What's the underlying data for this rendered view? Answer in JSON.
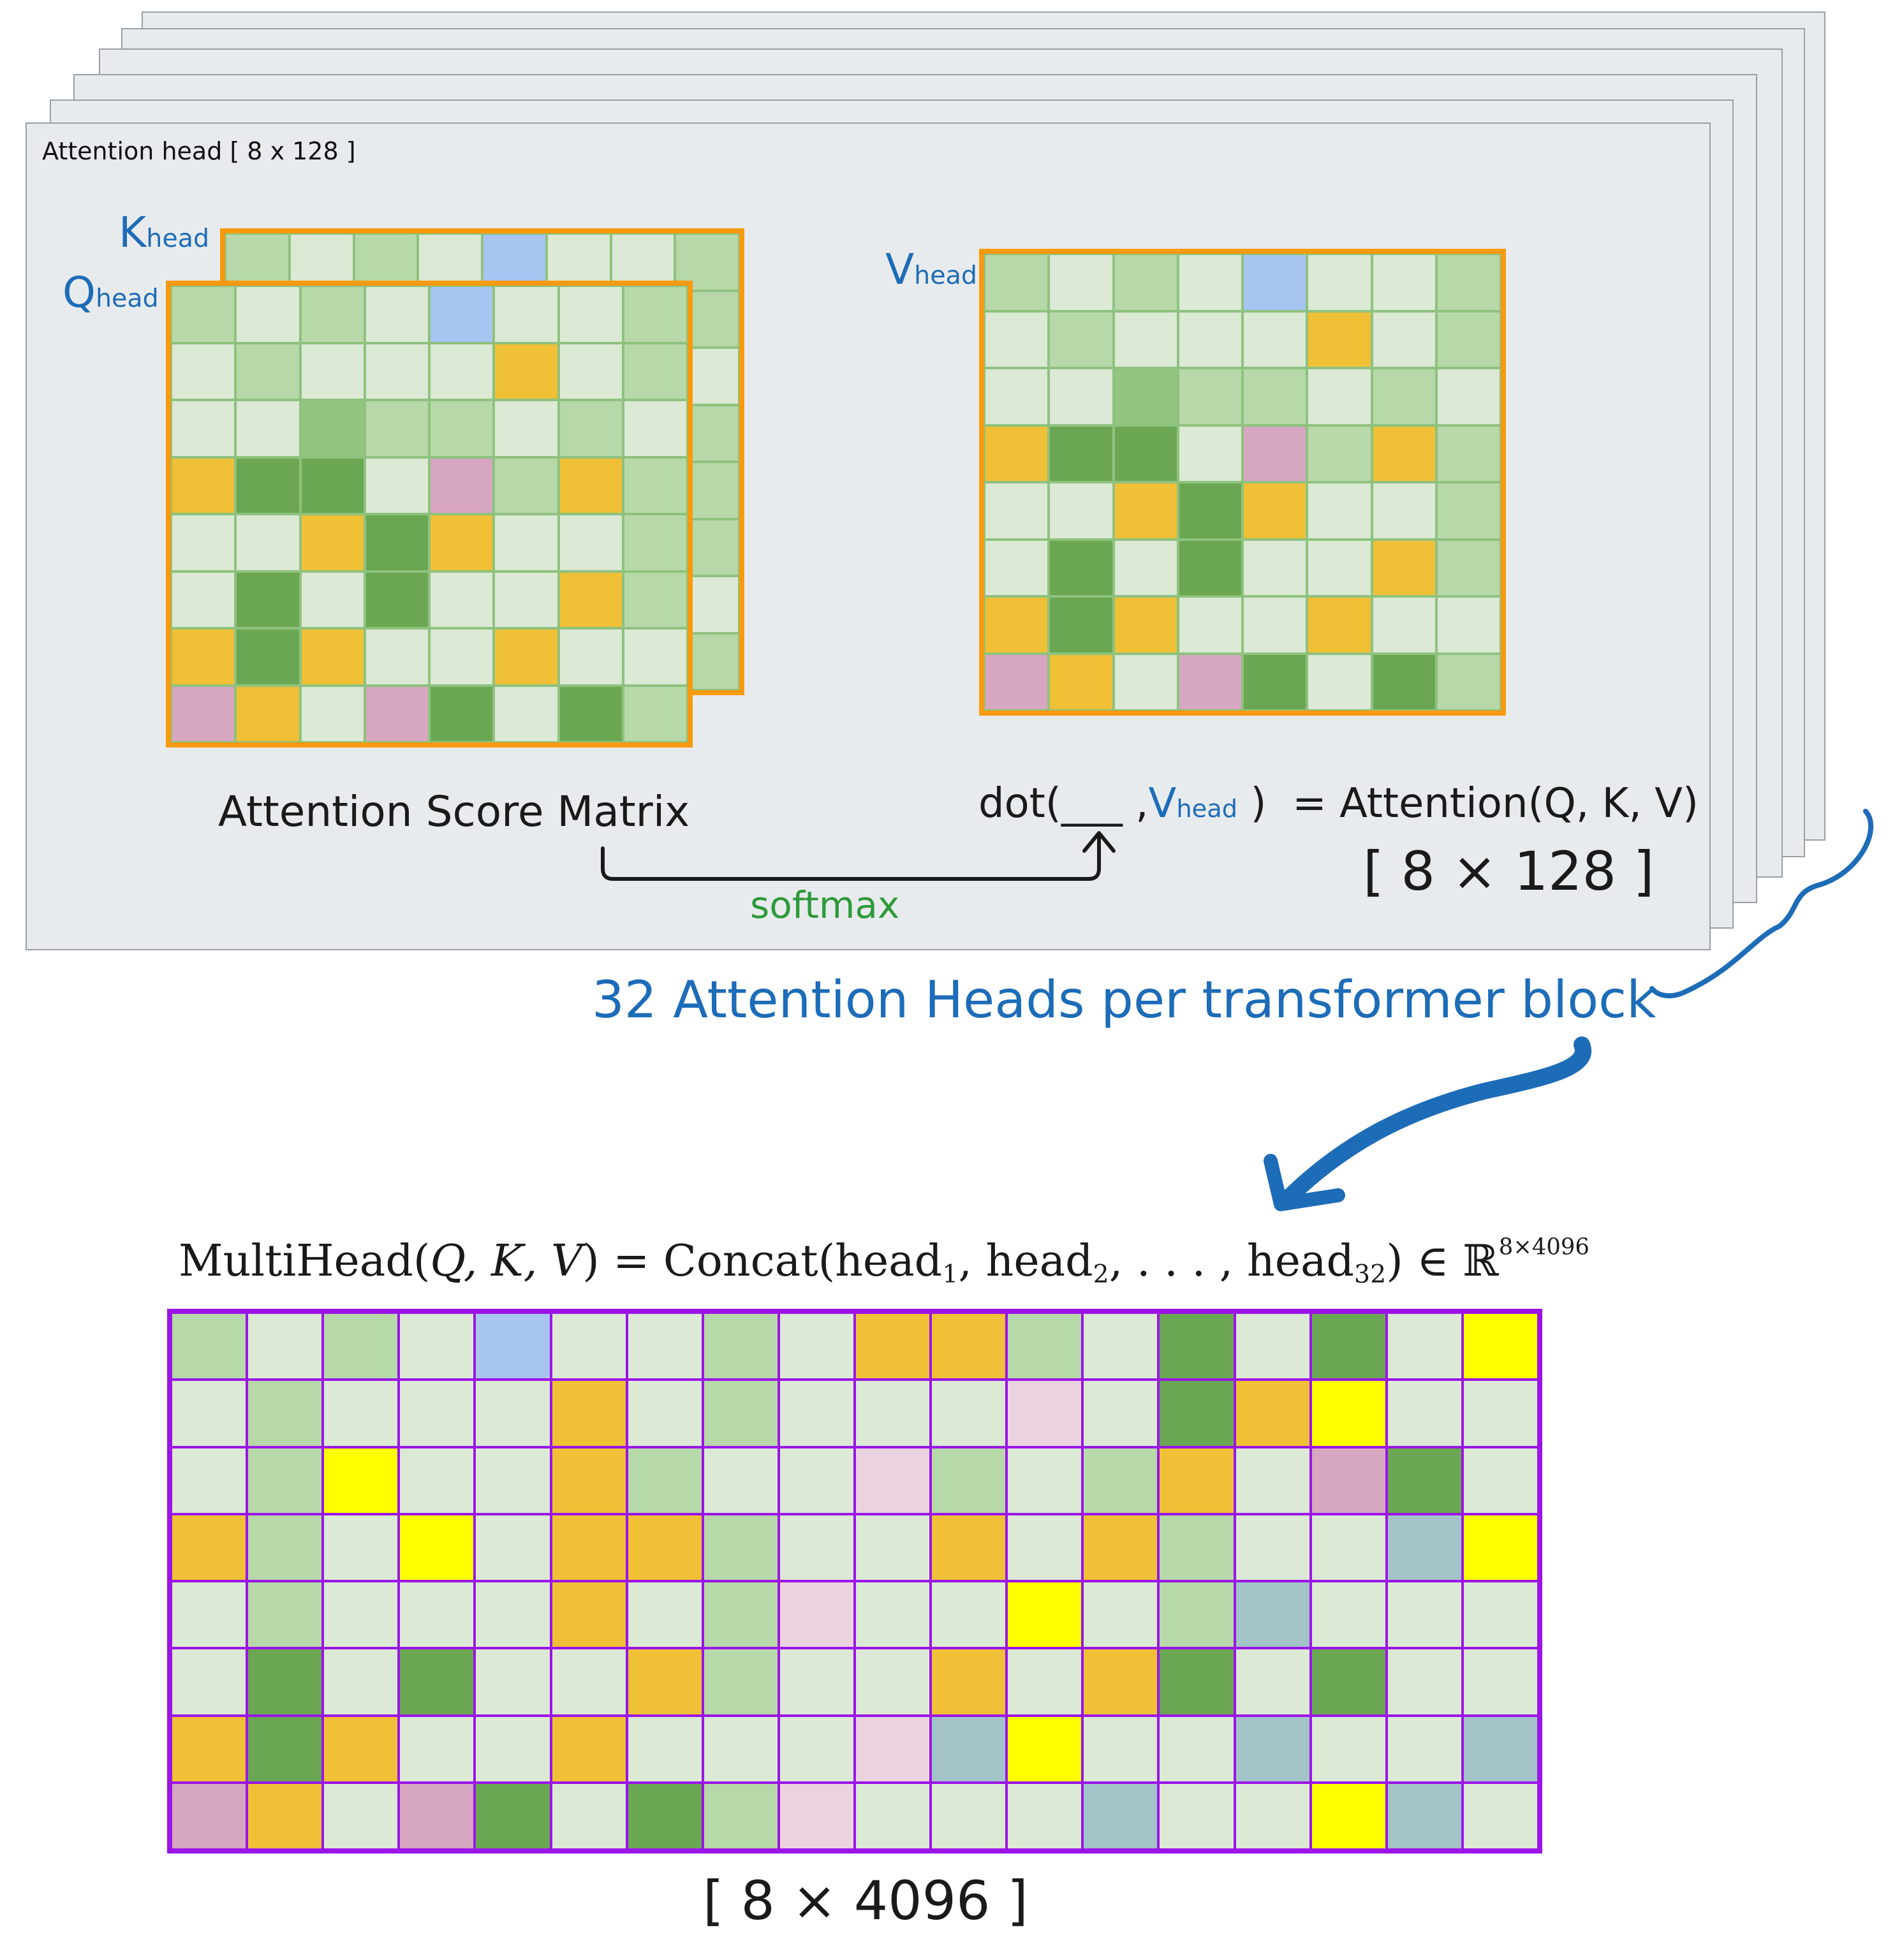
{
  "head_label": "Attention head [ 8 x 128 ]",
  "k_label": {
    "main": "K",
    "sub": "head"
  },
  "q_label": {
    "main": "Q",
    "sub": "head"
  },
  "v_label": {
    "main": "V",
    "sub": "head"
  },
  "score_label": "Attention Score Matrix",
  "dot_expr": {
    "prefix": "dot(___ ,",
    "v_main": "V",
    "v_sub": "head",
    "suffix": ")",
    "result": "= Attention(Q, K, V)"
  },
  "head_dim_label": "[ 8 × 128 ]",
  "softmax_label": "softmax",
  "heads_label": "32 Attention Heads per transformer block",
  "formula": {
    "lhs": "MultiHead(",
    "args": "Q, K, V",
    "eq": ") = Concat(head",
    "s1": "1",
    "c1": ", head",
    "s2": "2",
    "c2": ", . . . , head",
    "s32": "32",
    "close": ") ∈ ℝ",
    "sup": "8×4096"
  },
  "output_dim_label": "[ 8 × 4096 ]",
  "colors": {
    "card_bg": "#e8ebee",
    "matrix_border": "#f79a0f",
    "multihead_border": "#9b14e8",
    "palette": {
      "L": "#dbe9d5",
      "M": "#b7d8a9",
      "D": "#6ba753",
      "G": "#94c57f",
      "Y": "#f0c036",
      "B": "#a8c5f2",
      "P": "#d7a7c2",
      "N": "#ead3df",
      "S": "#a3c3c9",
      "W": "#ffff00"
    }
  },
  "q_grid": [
    "MLMLBLLM",
    "LMLLLYLM",
    "LLGMMLML",
    "YDDLPMYM",
    "LLYDYLLM",
    "LDLDLLYM",
    "YDYLLYLL",
    "PYLPDLDM"
  ],
  "k_grid": [
    "MLMLBLLM",
    "LMLLLYLM",
    "LLGMMLML",
    "YDDLPMYM",
    "LLYDYLLM",
    "LDLDLLYM",
    "YDYLLYLL",
    "PYLPDLDM"
  ],
  "v_grid": [
    "MLMLBLLM",
    "LMLLLYLM",
    "LLGMMLML",
    "YDDLPMYM",
    "LLYDYLLM",
    "LDLDLLYM",
    "YDYLLYLL",
    "PYLPDLDM"
  ],
  "multihead_grid": [
    "MLMLBLLMLYYMLDLDLW",
    "LMLLLYLMLLLNLDYWLL",
    "LMWLLYMLLNMLMYLPDL",
    "YMLWLYYMLLYLYMLLSW",
    "LMLLLYLMNLLWLMSLLL",
    "LDLDLLYMLLYLYDLDLL",
    "YDYLLYLLLNSWLLSLLS",
    "PYLPDLDMNLLLSLLWSL"
  ]
}
